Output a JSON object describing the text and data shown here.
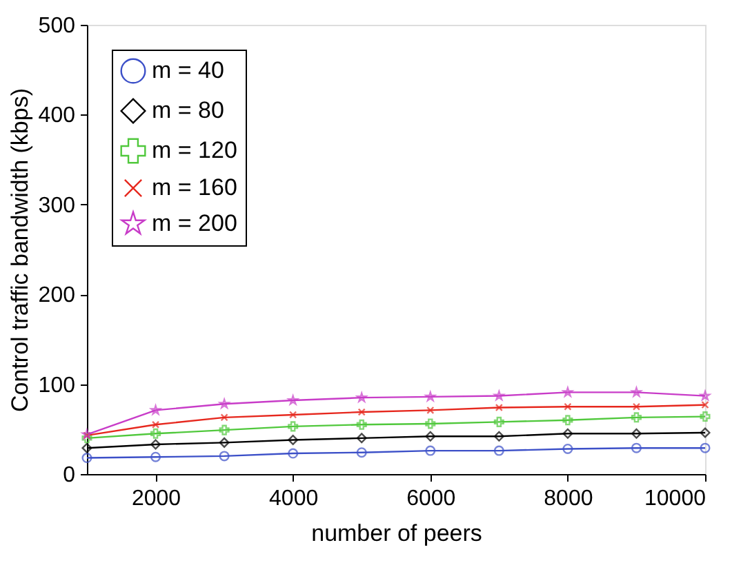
{
  "chart_data": {
    "type": "line",
    "xlabel": "number of peers",
    "ylabel": "Control traffic bandwidth (kbps)",
    "x": [
      1000,
      2000,
      3000,
      4000,
      5000,
      6000,
      7000,
      8000,
      9000,
      10000
    ],
    "xlim": [
      1000,
      10000
    ],
    "xticks": [
      2000,
      4000,
      6000,
      8000,
      10000
    ],
    "ylim": [
      0,
      500
    ],
    "yticks": [
      0,
      100,
      200,
      300,
      400,
      500
    ],
    "grid": false,
    "legend": "top left",
    "series": [
      {
        "name": "m = 40",
        "color": "#3c50c8",
        "marker": "circle",
        "values": [
          18,
          19,
          20,
          23,
          24,
          26,
          26,
          28,
          29,
          29
        ]
      },
      {
        "name": "m  = 80",
        "color": "#000000",
        "marker": "diamond",
        "values": [
          29,
          33,
          35,
          38,
          40,
          42,
          42,
          45,
          45,
          46
        ]
      },
      {
        "name": "m = 120",
        "color": "#50c83c",
        "marker": "cross",
        "values": [
          40,
          45,
          49,
          53,
          55,
          56,
          58,
          60,
          63,
          64
        ]
      },
      {
        "name": "m = 160",
        "color": "#e6281e",
        "marker": "cross",
        "values": [
          43,
          55,
          63,
          66,
          69,
          71,
          74,
          75,
          75,
          77
        ]
      },
      {
        "name": "m = 200",
        "color": "#c83cc8",
        "marker": "star",
        "values": [
          44,
          71,
          78,
          82,
          85,
          86,
          87,
          91,
          91,
          87
        ]
      }
    ]
  }
}
